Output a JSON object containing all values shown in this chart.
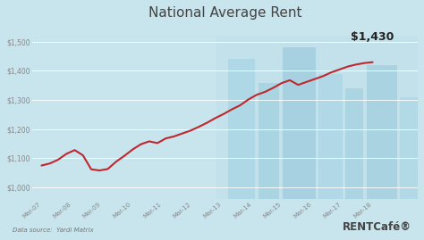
{
  "title": "National Average Rent",
  "title_fontsize": 11,
  "bg_color": "#c8e4ed",
  "line_color": "#c0272d",
  "annotation_value": "$1,430",
  "data_source": "Data source:  Yardi Matrix",
  "rentcafe_text": "RENTCafé®",
  "x_labels": [
    "Mar-07",
    "Mar-08",
    "Mar-09",
    "Mar-10",
    "Mar-11",
    "Mar-12",
    "Mar-13",
    "Mar-14",
    "Mar-15",
    "Mar-16",
    "Mar-17",
    "Mar-18"
  ],
  "y_ticks": [
    1000,
    1100,
    1200,
    1300,
    1400,
    1500
  ],
  "y_tick_labels": [
    "$1,000",
    "$1,100",
    "$1,200",
    "$1,300",
    "$1,400",
    "$1,500"
  ],
  "ylim": [
    960,
    1560
  ],
  "xlim": [
    -0.3,
    12.5
  ],
  "values": [
    1075,
    1082,
    1095,
    1115,
    1128,
    1110,
    1062,
    1058,
    1063,
    1088,
    1108,
    1130,
    1148,
    1158,
    1152,
    1168,
    1175,
    1185,
    1195,
    1208,
    1222,
    1238,
    1252,
    1268,
    1282,
    1302,
    1318,
    1328,
    1342,
    1358,
    1368,
    1352,
    1362,
    1372,
    1382,
    1395,
    1405,
    1415,
    1422,
    1427,
    1430
  ],
  "grid_color": "#ddeef5",
  "axis_label_color": "#888888",
  "building_color": "#a8d8e8",
  "building_alpha": 0.45
}
